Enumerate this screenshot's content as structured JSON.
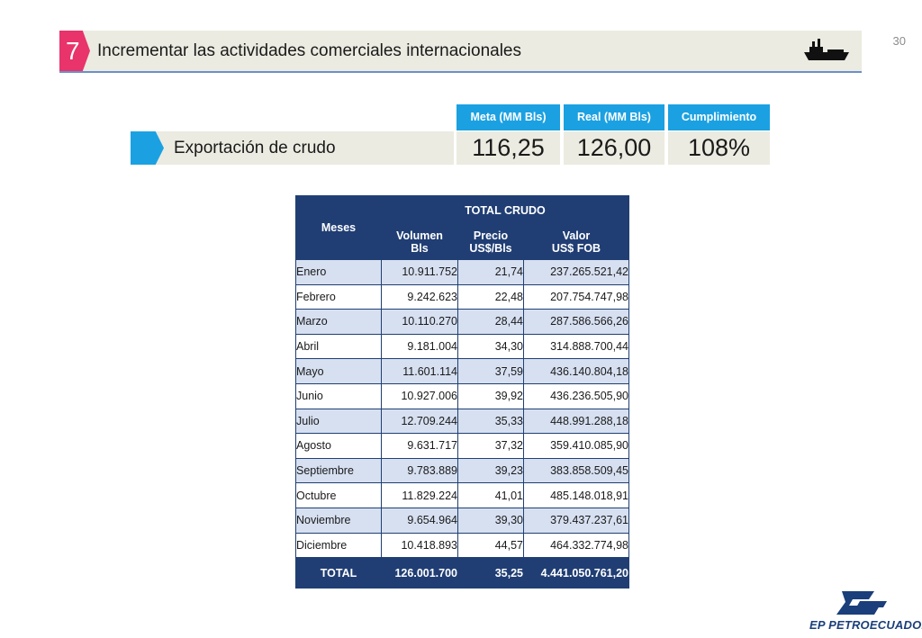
{
  "page": {
    "number": "30"
  },
  "header": {
    "section_number": "7",
    "title": "Incrementar las actividades comerciales internacionales",
    "icon": "ship-icon"
  },
  "kpi": {
    "label": "Exportación de crudo",
    "headers": [
      "Meta (MM Bls)",
      "Real (MM Bls)",
      "Cumplimiento"
    ],
    "values": [
      "116,25",
      "126,00",
      "108%"
    ]
  },
  "table": {
    "header_meses": "Meses",
    "header_group": "TOTAL CRUDO",
    "columns": [
      {
        "line1": "Volumen",
        "line2": "Bls"
      },
      {
        "line1": "Precio",
        "line2": "US$/Bls"
      },
      {
        "line1": "Valor",
        "line2": "US$ FOB"
      }
    ],
    "rows": [
      {
        "mes": "Enero",
        "volumen": "10.911.752",
        "precio": "21,74",
        "valor": "237.265.521,42"
      },
      {
        "mes": "Febrero",
        "volumen": "9.242.623",
        "precio": "22,48",
        "valor": "207.754.747,98"
      },
      {
        "mes": "Marzo",
        "volumen": "10.110.270",
        "precio": "28,44",
        "valor": "287.586.566,26"
      },
      {
        "mes": "Abril",
        "volumen": "9.181.004",
        "precio": "34,30",
        "valor": "314.888.700,44"
      },
      {
        "mes": "Mayo",
        "volumen": "11.601.114",
        "precio": "37,59",
        "valor": "436.140.804,18"
      },
      {
        "mes": "Junio",
        "volumen": "10.927.006",
        "precio": "39,92",
        "valor": "436.236.505,90"
      },
      {
        "mes": "Julio",
        "volumen": "12.709.244",
        "precio": "35,33",
        "valor": "448.991.288,18"
      },
      {
        "mes": "Agosto",
        "volumen": "9.631.717",
        "precio": "37,32",
        "valor": "359.410.085,90"
      },
      {
        "mes": "Septiembre",
        "volumen": "9.783.889",
        "precio": "39,23",
        "valor": "383.858.509,45"
      },
      {
        "mes": "Octubre",
        "volumen": "11.829.224",
        "precio": "41,01",
        "valor": "485.148.018,91"
      },
      {
        "mes": "Noviembre",
        "volumen": "9.654.964",
        "precio": "39,30",
        "valor": "379.437.237,61"
      },
      {
        "mes": "Diciembre",
        "volumen": "10.418.893",
        "precio": "44,57",
        "valor": "464.332.774,98"
      }
    ],
    "total": {
      "mes": "TOTAL",
      "volumen": "126.001.700",
      "precio": "35,25",
      "valor": "4.441.050.761,20"
    }
  },
  "logo": {
    "text": "EP PETROECUADOR"
  },
  "colors": {
    "accent_pink": "#e8336b",
    "accent_blue": "#1ba1e2",
    "navy": "#203e74",
    "row_alt": "#d7e0f1",
    "panel": "#ebebe1"
  }
}
